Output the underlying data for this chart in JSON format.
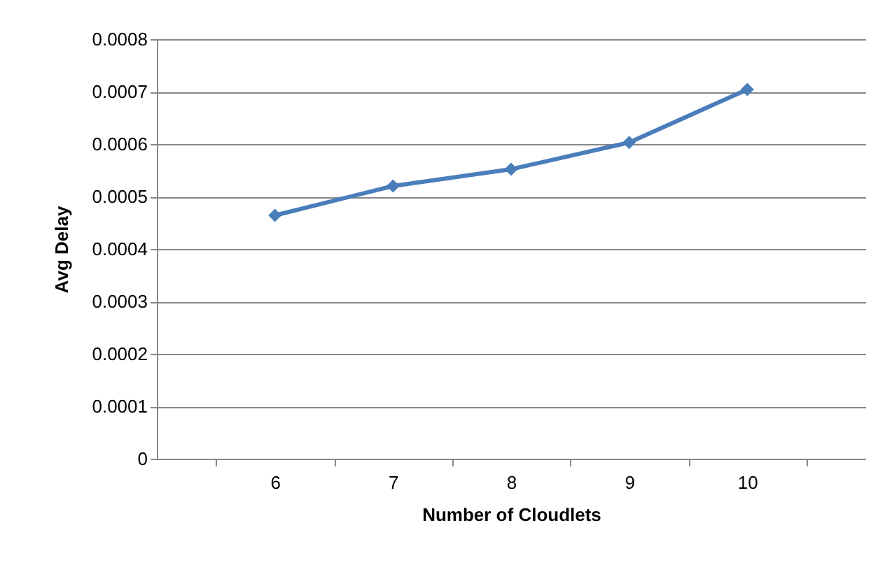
{
  "chart_data": {
    "type": "line",
    "xlabel": "Number of Cloudlets",
    "ylabel": "Avg Delay",
    "categories": [
      "6",
      "7",
      "8",
      "9",
      "10"
    ],
    "series": [
      {
        "color": "#4a7ebb",
        "values": [
          0.000464,
          0.00052,
          0.000552,
          0.000603,
          0.000704
        ]
      }
    ],
    "ylim": [
      0,
      0.0008
    ],
    "yticks": [
      0,
      0.0001,
      0.0002,
      0.0003,
      0.0004,
      0.0005,
      0.0006,
      0.0007,
      0.0008
    ],
    "grid": "y",
    "marker": "diamond",
    "line_style": "solid"
  }
}
